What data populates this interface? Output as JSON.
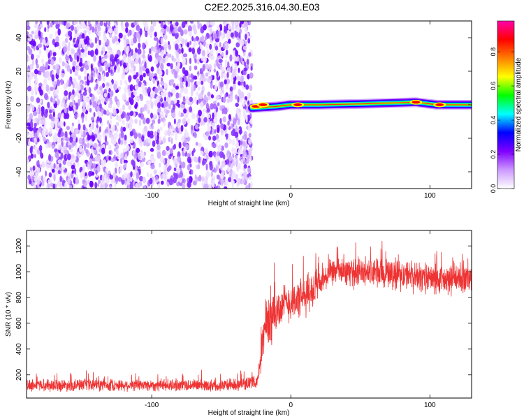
{
  "title": "C2E2.2025.316.04.30.E03",
  "chart_data": [
    {
      "type": "heatmap",
      "xlabel": "Height of straight line (km)",
      "ylabel": "Frequency (Hz)",
      "xlim": [
        -190,
        130
      ],
      "ylim": [
        -50,
        50
      ],
      "x_ticks": [
        -100,
        0,
        100
      ],
      "y_ticks": [
        -40,
        -20,
        0,
        20,
        40
      ],
      "noise_region_x": [
        -190,
        -28
      ],
      "signal_band": {
        "x_start": -28,
        "points": [
          {
            "x": -28,
            "y": -2
          },
          {
            "x": -10,
            "y": -1
          },
          {
            "x": 0,
            "y": 0
          },
          {
            "x": 20,
            "y": 0
          },
          {
            "x": 50,
            "y": 0.5
          },
          {
            "x": 70,
            "y": 1
          },
          {
            "x": 90,
            "y": 1.5
          },
          {
            "x": 105,
            "y": 0
          },
          {
            "x": 130,
            "y": 0
          }
        ],
        "hot_spots": [
          {
            "x": -25,
            "y": -1
          },
          {
            "x": -20,
            "y": 0
          },
          {
            "x": 5,
            "y": 0
          },
          {
            "x": 90,
            "y": 1.5
          },
          {
            "x": 107,
            "y": 0
          }
        ]
      },
      "colorbar": {
        "label": "Normalized spectral amplitude",
        "range": [
          0.0,
          0.98
        ],
        "ticks": [
          "0.0",
          "0.2",
          "0.4",
          "0.6",
          "0.8"
        ],
        "colors": [
          "#ffffff",
          "#cc99ff",
          "#7f00ff",
          "#0000ff",
          "#00ffff",
          "#00ff00",
          "#ffff00",
          "#ff7f00",
          "#ff0000",
          "#ff00aa"
        ]
      }
    },
    {
      "type": "line",
      "xlabel": "Height of straight line (km)",
      "ylabel": "SNR (10 * v/v)",
      "xlim": [
        -190,
        130
      ],
      "ylim": [
        20,
        1320
      ],
      "x_ticks": [
        -100,
        0,
        100
      ],
      "y_ticks": [
        200,
        400,
        600,
        800,
        1000,
        1200
      ],
      "color": "#ee3333",
      "segments": [
        {
          "x_from": -190,
          "x_to": -22,
          "mean": 120,
          "spread": 55
        },
        {
          "x_from": -22,
          "x_to": -10,
          "mean": 650,
          "spread": 260
        },
        {
          "x_from": -10,
          "x_to": 20,
          "mean": 820,
          "spread": 180
        },
        {
          "x_from": 20,
          "x_to": 45,
          "mean": 1000,
          "spread": 120
        },
        {
          "x_from": 45,
          "x_to": 130,
          "mean": 960,
          "spread": 140
        }
      ],
      "envelope": [
        {
          "x": -190,
          "y": 120
        },
        {
          "x": -40,
          "y": 120
        },
        {
          "x": -24,
          "y": 150
        },
        {
          "x": -18,
          "y": 600
        },
        {
          "x": -5,
          "y": 750
        },
        {
          "x": 10,
          "y": 800
        },
        {
          "x": 20,
          "y": 900
        },
        {
          "x": 30,
          "y": 1000
        },
        {
          "x": 60,
          "y": 990
        },
        {
          "x": 90,
          "y": 960
        },
        {
          "x": 110,
          "y": 930
        },
        {
          "x": 130,
          "y": 950
        }
      ]
    }
  ]
}
